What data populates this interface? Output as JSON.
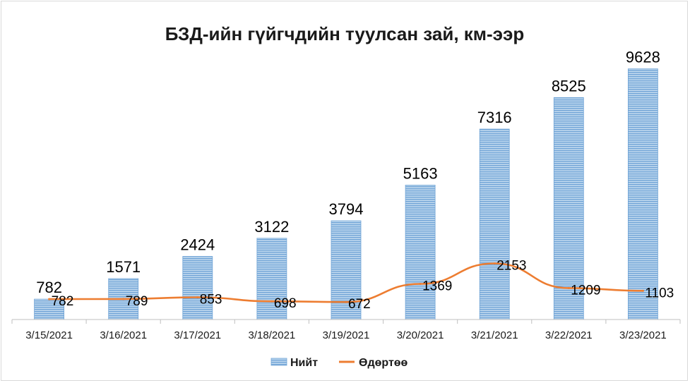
{
  "chart_data": {
    "type": "bar",
    "title": "БЗД-ийн гүйгчдийн туулсан зай, км-ээр",
    "categories": [
      "3/15/2021",
      "3/16/2021",
      "3/17/2021",
      "3/18/2021",
      "3/19/2021",
      "3/20/2021",
      "3/21/2021",
      "3/22/2021",
      "3/23/2021"
    ],
    "series": [
      {
        "name": "Нийт",
        "kind": "bar",
        "color": "#9dc3e6",
        "values": [
          782,
          1571,
          2424,
          3122,
          3794,
          5163,
          7316,
          8525,
          9628
        ]
      },
      {
        "name": "Өдөртөө",
        "kind": "line",
        "color": "#ed7d31",
        "values": [
          782,
          789,
          853,
          698,
          672,
          1369,
          2153,
          1209,
          1103
        ]
      }
    ],
    "ylim": [
      0,
      11000
    ],
    "grid": false,
    "legend": "bottom",
    "data_labels": true
  }
}
